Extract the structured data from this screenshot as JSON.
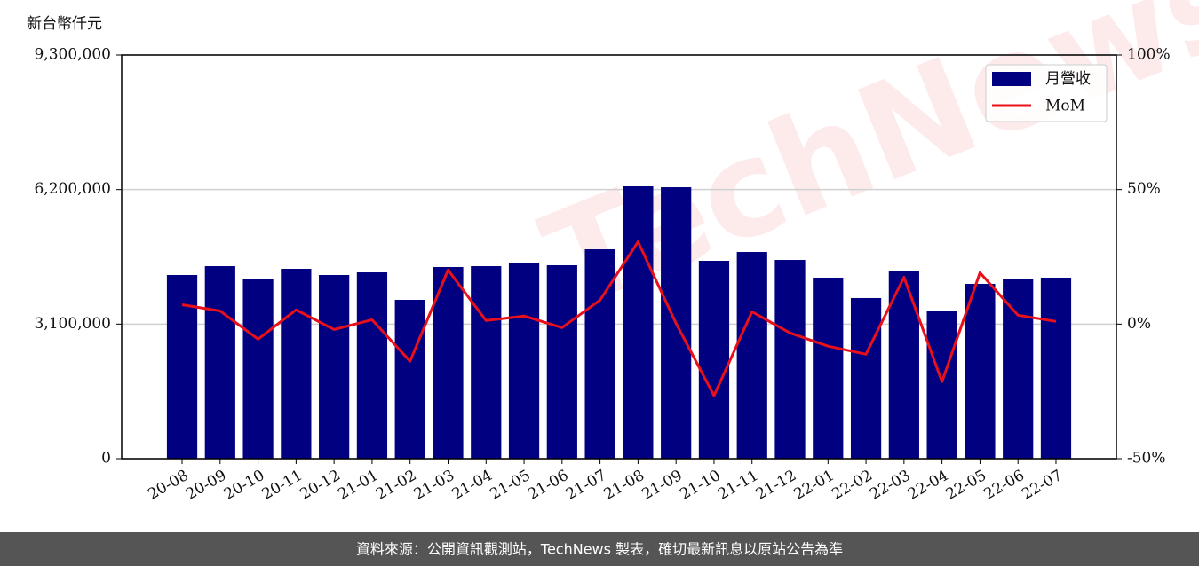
{
  "chart_data": {
    "type": "bar",
    "y_label": "新台幣仟元",
    "watermark": "TechNews",
    "categories": [
      "20-08",
      "20-09",
      "20-10",
      "20-11",
      "20-12",
      "21-01",
      "21-02",
      "21-03",
      "21-04",
      "21-05",
      "21-06",
      "21-07",
      "21-08",
      "21-09",
      "21-10",
      "21-11",
      "21-12",
      "22-01",
      "22-02",
      "22-03",
      "22-04",
      "22-05",
      "22-06",
      "22-07"
    ],
    "series": [
      {
        "name": "月營收",
        "type": "bar",
        "color": "#000080",
        "values": [
          4231000,
          4435000,
          4149000,
          4374000,
          4231000,
          4292000,
          3659000,
          4415000,
          4435000,
          4517000,
          4456000,
          4824000,
          6275000,
          6254000,
          4558000,
          4762000,
          4578000,
          4170000,
          3700000,
          4333000,
          3393000,
          4027000,
          4149000,
          4170000
        ]
      },
      {
        "name": "MoM",
        "type": "line",
        "color": "#e8101a",
        "axis": "y2",
        "values": [
          7.2,
          4.9,
          -5.6,
          5.3,
          -2.0,
          1.6,
          -13.8,
          20.1,
          1.3,
          3.0,
          -1.3,
          8.9,
          30.6,
          0.3,
          -26.6,
          4.6,
          -3.3,
          -8.2,
          -11.2,
          17.4,
          -21.4,
          19.1,
          3.3,
          1.0
        ]
      }
    ],
    "ylim": [
      0,
      9300000
    ],
    "yticks": [
      {
        "value": 0,
        "label": "0"
      },
      {
        "value": 3100000,
        "label": "3,100,000"
      },
      {
        "value": 6200000,
        "label": "6,200,000"
      },
      {
        "value": 9300000,
        "label": "9,300,000"
      }
    ],
    "y2lim": [
      -50,
      100
    ],
    "y2ticks": [
      {
        "value": -50,
        "label": "-50%"
      },
      {
        "value": 0,
        "label": "0%"
      },
      {
        "value": 50,
        "label": "50%"
      },
      {
        "value": 100,
        "label": "100%"
      }
    ],
    "grid": true,
    "legend": "upper right"
  },
  "footer": "資料來源：公開資訊觀測站，TechNews 製表，確切最新訊息以原站公告為準"
}
